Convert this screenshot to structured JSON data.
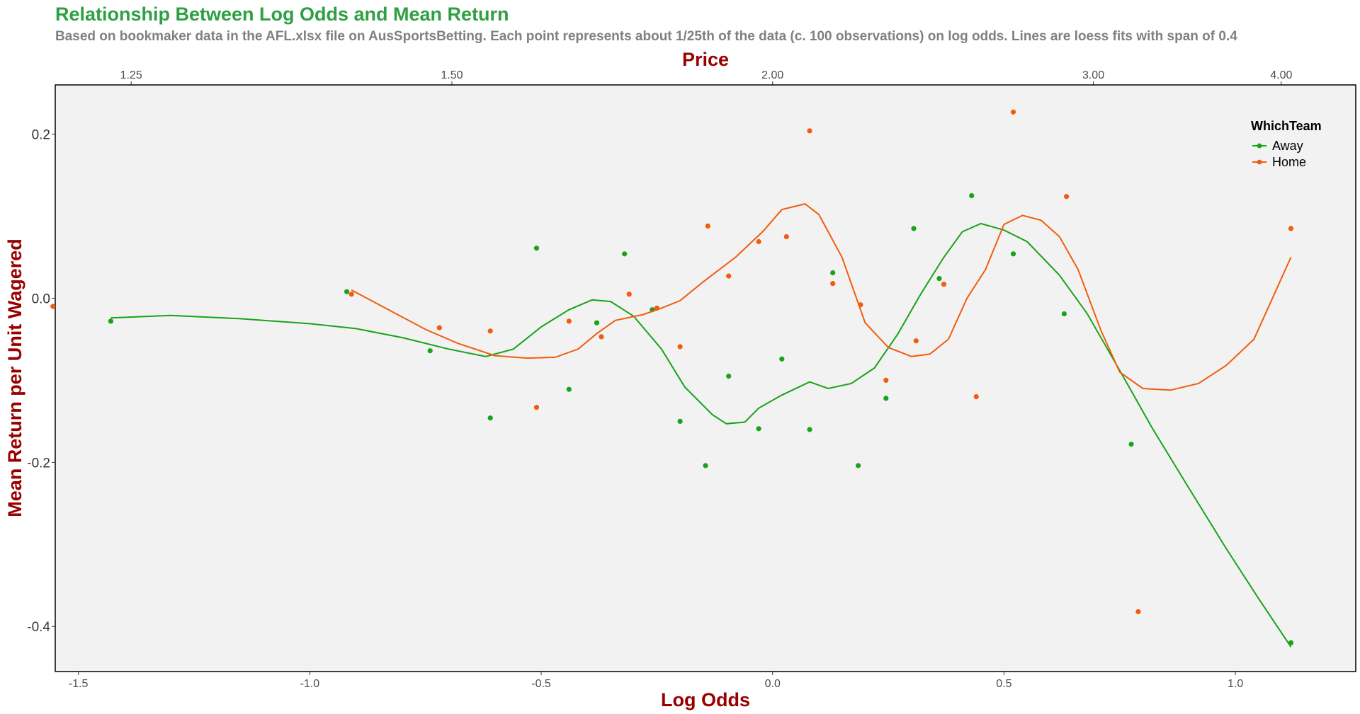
{
  "chart_data": {
    "type": "scatter",
    "title": "Relationship Between Log Odds and Mean Return",
    "subtitle": "Based on bookmaker data in the AFL.xlsx file on AusSportsBetting. Each point represents about 1/25th of the data (c. 100 observations) on log odds. Lines are loess fits with span of 0.4",
    "xlabel": "Log Odds",
    "ylabel": "Mean Return per Unit Wagered",
    "secondary_xlabel": "Price",
    "xlim": [
      -1.55,
      1.26
    ],
    "ylim": [
      -0.455,
      0.26
    ],
    "x_ticks": [
      {
        "value": -1.5,
        "label": "-1.5"
      },
      {
        "value": -1.0,
        "label": "-1.0"
      },
      {
        "value": -0.5,
        "label": "-0.5"
      },
      {
        "value": 0.0,
        "label": "0.0"
      },
      {
        "value": 0.5,
        "label": "0.5"
      },
      {
        "value": 1.0,
        "label": "1.0"
      }
    ],
    "y_ticks": [
      {
        "value": 0.2,
        "label": "0.2"
      },
      {
        "value": 0.0,
        "label": "0.0"
      },
      {
        "value": -0.2,
        "label": "-0.2"
      },
      {
        "value": -0.4,
        "label": "-0.4"
      }
    ],
    "top_ticks": [
      {
        "value": -1.386,
        "label": "1.25"
      },
      {
        "value": -0.693,
        "label": "1.50"
      },
      {
        "value": 0.0,
        "label": "2.00"
      },
      {
        "value": 0.693,
        "label": "3.00"
      },
      {
        "value": 1.099,
        "label": "4.00"
      }
    ],
    "legend": {
      "title": "WhichTeam",
      "position": "top-right"
    },
    "grid": false,
    "background": "#f2f2f2",
    "colors": {
      "title": "#2ea043",
      "subtitle": "#808080",
      "axis_title": "#990000",
      "away": "#19a319",
      "home": "#f25c0d"
    },
    "series": [
      {
        "name": "Away",
        "color": "#19a319",
        "points": [
          {
            "x": -1.43,
            "y": -0.028
          },
          {
            "x": -0.92,
            "y": 0.008
          },
          {
            "x": -0.74,
            "y": -0.064
          },
          {
            "x": -0.61,
            "y": -0.146
          },
          {
            "x": -0.51,
            "y": 0.061
          },
          {
            "x": -0.44,
            "y": -0.111
          },
          {
            "x": -0.38,
            "y": -0.03
          },
          {
            "x": -0.32,
            "y": 0.054
          },
          {
            "x": -0.26,
            "y": -0.014
          },
          {
            "x": -0.2,
            "y": -0.15
          },
          {
            "x": -0.145,
            "y": -0.204
          },
          {
            "x": -0.095,
            "y": -0.095
          },
          {
            "x": -0.03,
            "y": -0.159
          },
          {
            "x": 0.02,
            "y": -0.074
          },
          {
            "x": 0.08,
            "y": -0.16
          },
          {
            "x": 0.13,
            "y": 0.031
          },
          {
            "x": 0.185,
            "y": -0.204
          },
          {
            "x": 0.245,
            "y": -0.122
          },
          {
            "x": 0.305,
            "y": 0.085
          },
          {
            "x": 0.36,
            "y": 0.024
          },
          {
            "x": 0.43,
            "y": 0.125
          },
          {
            "x": 0.52,
            "y": 0.054
          },
          {
            "x": 0.63,
            "y": -0.019
          },
          {
            "x": 0.775,
            "y": -0.178
          },
          {
            "x": 1.12,
            "y": -0.42
          }
        ],
        "loess": [
          {
            "x": -1.43,
            "y": -0.024
          },
          {
            "x": -1.3,
            "y": -0.021
          },
          {
            "x": -1.15,
            "y": -0.025
          },
          {
            "x": -1.0,
            "y": -0.031
          },
          {
            "x": -0.9,
            "y": -0.037
          },
          {
            "x": -0.8,
            "y": -0.048
          },
          {
            "x": -0.7,
            "y": -0.062
          },
          {
            "x": -0.62,
            "y": -0.071
          },
          {
            "x": -0.56,
            "y": -0.062
          },
          {
            "x": -0.5,
            "y": -0.035
          },
          {
            "x": -0.44,
            "y": -0.014
          },
          {
            "x": -0.39,
            "y": -0.002
          },
          {
            "x": -0.35,
            "y": -0.004
          },
          {
            "x": -0.3,
            "y": -0.022
          },
          {
            "x": -0.24,
            "y": -0.062
          },
          {
            "x": -0.19,
            "y": -0.108
          },
          {
            "x": -0.13,
            "y": -0.142
          },
          {
            "x": -0.1,
            "y": -0.153
          },
          {
            "x": -0.06,
            "y": -0.151
          },
          {
            "x": -0.03,
            "y": -0.134
          },
          {
            "x": 0.02,
            "y": -0.118
          },
          {
            "x": 0.08,
            "y": -0.102
          },
          {
            "x": 0.12,
            "y": -0.11
          },
          {
            "x": 0.17,
            "y": -0.104
          },
          {
            "x": 0.22,
            "y": -0.085
          },
          {
            "x": 0.27,
            "y": -0.044
          },
          {
            "x": 0.32,
            "y": 0.005
          },
          {
            "x": 0.37,
            "y": 0.05
          },
          {
            "x": 0.41,
            "y": 0.081
          },
          {
            "x": 0.45,
            "y": 0.091
          },
          {
            "x": 0.5,
            "y": 0.083
          },
          {
            "x": 0.55,
            "y": 0.069
          },
          {
            "x": 0.62,
            "y": 0.028
          },
          {
            "x": 0.68,
            "y": -0.019
          },
          {
            "x": 0.75,
            "y": -0.088
          },
          {
            "x": 0.82,
            "y": -0.158
          },
          {
            "x": 0.9,
            "y": -0.232
          },
          {
            "x": 0.98,
            "y": -0.305
          },
          {
            "x": 1.05,
            "y": -0.366
          },
          {
            "x": 1.12,
            "y": -0.425
          }
        ]
      },
      {
        "name": "Home",
        "color": "#f25c0d",
        "points": [
          {
            "x": -1.555,
            "y": -0.01
          },
          {
            "x": -0.91,
            "y": 0.005
          },
          {
            "x": -0.72,
            "y": -0.036
          },
          {
            "x": -0.61,
            "y": -0.04
          },
          {
            "x": -0.51,
            "y": -0.133
          },
          {
            "x": -0.44,
            "y": -0.028
          },
          {
            "x": -0.37,
            "y": -0.047
          },
          {
            "x": -0.31,
            "y": 0.005
          },
          {
            "x": -0.25,
            "y": -0.012
          },
          {
            "x": -0.2,
            "y": -0.059
          },
          {
            "x": -0.14,
            "y": 0.088
          },
          {
            "x": -0.095,
            "y": 0.027
          },
          {
            "x": -0.03,
            "y": 0.069
          },
          {
            "x": 0.03,
            "y": 0.075
          },
          {
            "x": 0.08,
            "y": 0.204
          },
          {
            "x": 0.13,
            "y": 0.018
          },
          {
            "x": 0.19,
            "y": -0.008
          },
          {
            "x": 0.245,
            "y": -0.1
          },
          {
            "x": 0.31,
            "y": -0.052
          },
          {
            "x": 0.37,
            "y": 0.017
          },
          {
            "x": 0.44,
            "y": -0.12
          },
          {
            "x": 0.52,
            "y": 0.227
          },
          {
            "x": 0.635,
            "y": 0.124
          },
          {
            "x": 0.79,
            "y": -0.382
          },
          {
            "x": 1.12,
            "y": 0.085
          }
        ],
        "loess": [
          {
            "x": -0.91,
            "y": 0.01
          },
          {
            "x": -0.85,
            "y": -0.008
          },
          {
            "x": -0.75,
            "y": -0.038
          },
          {
            "x": -0.68,
            "y": -0.055
          },
          {
            "x": -0.6,
            "y": -0.07
          },
          {
            "x": -0.53,
            "y": -0.073
          },
          {
            "x": -0.47,
            "y": -0.072
          },
          {
            "x": -0.42,
            "y": -0.062
          },
          {
            "x": -0.38,
            "y": -0.043
          },
          {
            "x": -0.34,
            "y": -0.027
          },
          {
            "x": -0.28,
            "y": -0.02
          },
          {
            "x": -0.24,
            "y": -0.012
          },
          {
            "x": -0.2,
            "y": -0.003
          },
          {
            "x": -0.15,
            "y": 0.02
          },
          {
            "x": -0.08,
            "y": 0.05
          },
          {
            "x": -0.02,
            "y": 0.082
          },
          {
            "x": 0.02,
            "y": 0.108
          },
          {
            "x": 0.07,
            "y": 0.115
          },
          {
            "x": 0.1,
            "y": 0.102
          },
          {
            "x": 0.15,
            "y": 0.05
          },
          {
            "x": 0.2,
            "y": -0.03
          },
          {
            "x": 0.25,
            "y": -0.06
          },
          {
            "x": 0.3,
            "y": -0.071
          },
          {
            "x": 0.34,
            "y": -0.068
          },
          {
            "x": 0.38,
            "y": -0.05
          },
          {
            "x": 0.42,
            "y": 0.0
          },
          {
            "x": 0.46,
            "y": 0.035
          },
          {
            "x": 0.5,
            "y": 0.09
          },
          {
            "x": 0.54,
            "y": 0.101
          },
          {
            "x": 0.58,
            "y": 0.095
          },
          {
            "x": 0.62,
            "y": 0.075
          },
          {
            "x": 0.66,
            "y": 0.035
          },
          {
            "x": 0.71,
            "y": -0.04
          },
          {
            "x": 0.75,
            "y": -0.09
          },
          {
            "x": 0.8,
            "y": -0.11
          },
          {
            "x": 0.86,
            "y": -0.112
          },
          {
            "x": 0.92,
            "y": -0.104
          },
          {
            "x": 0.98,
            "y": -0.082
          },
          {
            "x": 1.04,
            "y": -0.05
          },
          {
            "x": 1.12,
            "y": 0.05
          }
        ]
      }
    ]
  }
}
